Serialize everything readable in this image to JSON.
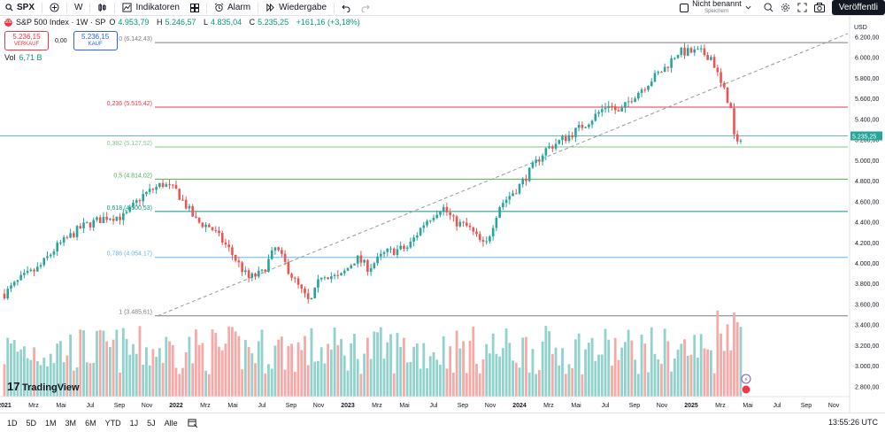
{
  "toolbar": {
    "symbol": "SPX",
    "interval": "W",
    "indicators_label": "Indikatoren",
    "alert_label": "Alarm",
    "replay_label": "Wiedergabe",
    "unsaved_label": "Nicht benannt",
    "saved_label": "Speichern",
    "publish_label": "Veröffentli"
  },
  "legend": {
    "title": "S&P 500 Index · 1W · SP",
    "badge": "500",
    "o": "O",
    "o_val": "4.953,79",
    "h": "H",
    "h_val": "5.246,57",
    "l": "L",
    "l_val": "4.835,04",
    "c": "C",
    "c_val": "5.235,25",
    "change": "+161,16 (+3,18%)",
    "sell_price": "5.236,15",
    "sell_label": "VERKAUF",
    "spread": "0,00",
    "buy_price": "5.236,15",
    "buy_label": "KAUF",
    "vol_label": "Vol",
    "vol_val": "6,71 B"
  },
  "price_axis": {
    "currency": "USD",
    "labels": [
      "6.200,00",
      "6.000,00",
      "5.800,00",
      "5.600,00",
      "5.400,00",
      "5.200,00",
      "5.000,00",
      "4.800,00",
      "4.600,00",
      "4.400,00",
      "4.200,00",
      "4.000,00",
      "3.800,00",
      "3.600,00",
      "3.400,00",
      "3.200,00",
      "3.000,00",
      "2.800,00"
    ],
    "values": [
      6200,
      6000,
      5800,
      5600,
      5400,
      5200,
      5000,
      4800,
      4600,
      4400,
      4200,
      4000,
      3800,
      3600,
      3400,
      3200,
      3000,
      2800
    ],
    "last_price": "5.235,25"
  },
  "fib": [
    {
      "label": "0 (6.142,43)",
      "value": 6142.43,
      "color": "#787b86"
    },
    {
      "label": "0,236 (5.515,42)",
      "value": 5515.42,
      "color": "#f23645"
    },
    {
      "label": "0,382 (5.127,52)",
      "value": 5127.52,
      "color": "#81c784"
    },
    {
      "label": "0,5 (4.814,02)",
      "value": 4814.02,
      "color": "#4caf50"
    },
    {
      "label": "0,618 (4.500,53)",
      "value": 4500.53,
      "color": "#089981"
    },
    {
      "label": "0,786 (4.054,17)",
      "value": 4054.17,
      "color": "#64b5f6"
    },
    {
      "label": "1 (3.485,61)",
      "value": 3485.61,
      "color": "#787b86"
    }
  ],
  "time_axis": [
    {
      "label": "2021",
      "year": true,
      "t": 0
    },
    {
      "label": "Mrz",
      "t": 0.17
    },
    {
      "label": "Mai",
      "t": 0.33
    },
    {
      "label": "Jul",
      "t": 0.5
    },
    {
      "label": "Sep",
      "t": 0.67
    },
    {
      "label": "Nov",
      "t": 0.83
    },
    {
      "label": "2022",
      "year": true,
      "t": 1
    },
    {
      "label": "Mrz",
      "t": 1.17
    },
    {
      "label": "Mai",
      "t": 1.33
    },
    {
      "label": "Jul",
      "t": 1.5
    },
    {
      "label": "Sep",
      "t": 1.67
    },
    {
      "label": "Nov",
      "t": 1.83
    },
    {
      "label": "2023",
      "year": true,
      "t": 2
    },
    {
      "label": "Mrz",
      "t": 2.17
    },
    {
      "label": "Mai",
      "t": 2.33
    },
    {
      "label": "Jul",
      "t": 2.5
    },
    {
      "label": "Sep",
      "t": 2.67
    },
    {
      "label": "Nov",
      "t": 2.83
    },
    {
      "label": "2024",
      "year": true,
      "t": 3
    },
    {
      "label": "Mrz",
      "t": 3.17
    },
    {
      "label": "Mai",
      "t": 3.33
    },
    {
      "label": "Jul",
      "t": 3.5
    },
    {
      "label": "Sep",
      "t": 3.67
    },
    {
      "label": "Nov",
      "t": 3.83
    },
    {
      "label": "2025",
      "year": true,
      "t": 4
    },
    {
      "label": "Mrz",
      "t": 4.17
    },
    {
      "label": "Mai",
      "t": 4.33
    },
    {
      "label": "Jul",
      "t": 4.5
    },
    {
      "label": "Sep",
      "t": 4.67
    },
    {
      "label": "Nov",
      "t": 4.83
    }
  ],
  "ranges": [
    "1D",
    "5D",
    "1M",
    "3M",
    "6M",
    "YTD",
    "1J",
    "5J",
    "Alle"
  ],
  "clock": "13:55:26 UTC",
  "brand": "TradingView",
  "colors": {
    "up": "#26a69a",
    "down": "#ef5350",
    "vol_up": "#92d2cc",
    "vol_down": "#f7a9a7"
  },
  "chart_data": {
    "type": "candlestick",
    "interval": "weekly",
    "anchors": [
      [
        0.0,
        3700
      ],
      [
        0.1,
        3850
      ],
      [
        0.2,
        3950
      ],
      [
        0.3,
        4150
      ],
      [
        0.45,
        4350
      ],
      [
        0.6,
        4450
      ],
      [
        0.7,
        4450
      ],
      [
        0.8,
        4650
      ],
      [
        0.92,
        4770
      ],
      [
        1.0,
        4700
      ],
      [
        1.12,
        4400
      ],
      [
        1.2,
        4350
      ],
      [
        1.3,
        4150
      ],
      [
        1.42,
        3850
      ],
      [
        1.5,
        3900
      ],
      [
        1.58,
        4150
      ],
      [
        1.7,
        3800
      ],
      [
        1.78,
        3600
      ],
      [
        1.85,
        3900
      ],
      [
        1.95,
        3850
      ],
      [
        2.05,
        4050
      ],
      [
        2.12,
        3950
      ],
      [
        2.22,
        4100
      ],
      [
        2.35,
        4150
      ],
      [
        2.45,
        4400
      ],
      [
        2.55,
        4550
      ],
      [
        2.62,
        4400
      ],
      [
        2.7,
        4350
      ],
      [
        2.8,
        4150
      ],
      [
        2.88,
        4550
      ],
      [
        3.0,
        4750
      ],
      [
        3.15,
        5100
      ],
      [
        3.3,
        5250
      ],
      [
        3.42,
        5400
      ],
      [
        3.52,
        5550
      ],
      [
        3.58,
        5450
      ],
      [
        3.65,
        5600
      ],
      [
        3.78,
        5800
      ],
      [
        3.85,
        5900
      ],
      [
        3.92,
        6050
      ],
      [
        4.05,
        6050
      ],
      [
        4.12,
        6000
      ],
      [
        4.18,
        5700
      ],
      [
        4.2,
        5650
      ],
      [
        4.23,
        5500
      ],
      [
        4.26,
        5100
      ],
      [
        4.29,
        5235
      ]
    ],
    "ylim": [
      2700,
      6350
    ],
    "volume_base": 3.2,
    "x_unit": "years since 2021"
  }
}
